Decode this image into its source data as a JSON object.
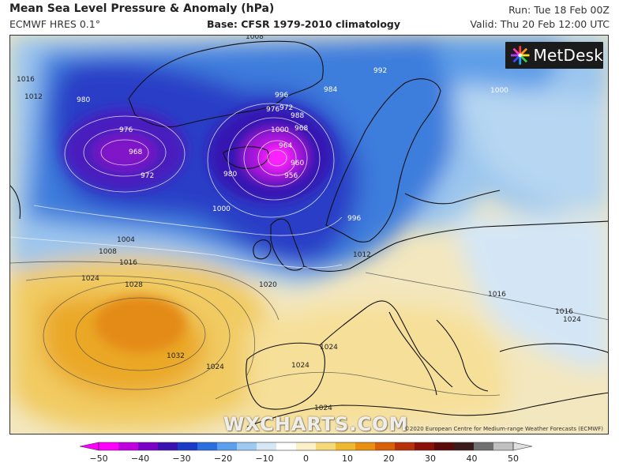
{
  "header": {
    "title": "Mean Sea Level Pressure & Anomaly (hPa)",
    "model": "ECMWF HRES 0.1°",
    "base": "Base: CFSR 1979-2010 climatology",
    "run": "Run: Tue 18 Feb 00Z",
    "valid": "Valid: Thu 20 Feb 12:00 UTC"
  },
  "logo": {
    "text": "MetDesk",
    "icon": "metdesk-star-icon"
  },
  "watermark": "WXCHARTS.COM",
  "copyright": "©2020 European Centre for Medium-range Weather Forecasts (ECMWF)",
  "isobar_labels": [
    "1016",
    "1012",
    "980",
    "976",
    "968",
    "972",
    "988",
    "996",
    "1008",
    "1000",
    "992",
    "984",
    "976",
    "972",
    "968",
    "964",
    "956",
    "960",
    "980",
    "1000",
    "996",
    "1004",
    "1008",
    "1016",
    "1012",
    "1020",
    "1024",
    "1028",
    "1032",
    "1024",
    "1024",
    "1024",
    "1000",
    "1016",
    "1016",
    "1024",
    "1024"
  ],
  "colorbar": {
    "ticks": [
      "−50",
      "−40",
      "−30",
      "−20",
      "−10",
      "0",
      "10",
      "20",
      "30",
      "40",
      "50"
    ],
    "colors": [
      "#ff00ff",
      "#c000e0",
      "#7a00c8",
      "#3a10b0",
      "#1a3ac8",
      "#2a6ee0",
      "#5aa0ee",
      "#9ccaf2",
      "#d6e8f6",
      "#ffffff",
      "#fbf0c8",
      "#f5d878",
      "#eeb830",
      "#e89010",
      "#d86008",
      "#b83008",
      "#8a1008",
      "#5a0a08",
      "#3a1a1a",
      "#707070",
      "#c0c0c0"
    ]
  }
}
